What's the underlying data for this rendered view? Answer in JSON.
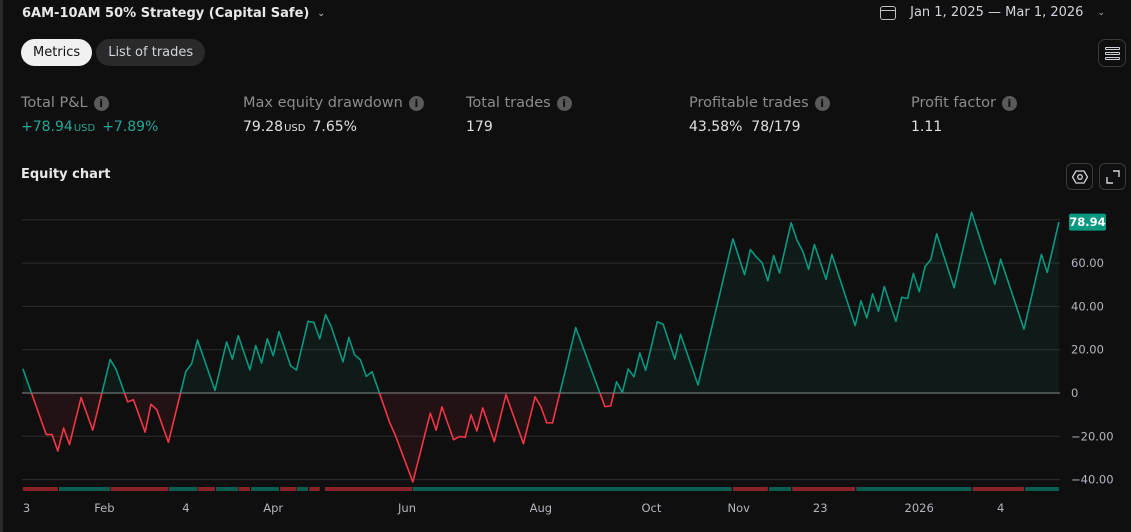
{
  "header": {
    "strategy_title": "6AM-10AM 50% Strategy (Capital Safe)",
    "date_range": "Jan 1, 2025 — Mar 1, 2026"
  },
  "tabs": [
    {
      "label": "Metrics",
      "active": true
    },
    {
      "label": "List of trades",
      "active": false
    }
  ],
  "metrics": {
    "total_pnl": {
      "label": "Total P&L",
      "value": "+78.94",
      "unit": "USD",
      "percent": "+7.89%"
    },
    "max_drawdown": {
      "label": "Max equity drawdown",
      "value": "79.28",
      "unit": "USD",
      "percent": "7.65%"
    },
    "total_trades": {
      "label": "Total trades",
      "value": "179"
    },
    "profitable_trades": {
      "label": "Profitable trades",
      "percent": "43.58%",
      "ratio": "78/179"
    },
    "profit_factor": {
      "label": "Profit factor",
      "value": "1.11"
    }
  },
  "equity_chart": {
    "title": "Equity chart"
  },
  "colors": {
    "profit": "#089981",
    "loss": "#f23645",
    "background": "#0f0f0f"
  },
  "chart_data": {
    "type": "area",
    "xlabel": "",
    "ylabel": "",
    "x_unit": "trade number",
    "ylim": [
      -45,
      85
    ],
    "grid": true,
    "last_value_label": "78.94",
    "y_ticks": [
      {
        "value": 80,
        "label": ""
      },
      {
        "value": 60,
        "label": "60.00"
      },
      {
        "value": 40,
        "label": "40.00"
      },
      {
        "value": 20,
        "label": "20.00"
      },
      {
        "value": 0,
        "label": "0"
      },
      {
        "value": -20,
        "label": "-20.00"
      },
      {
        "value": -40,
        "label": "-40.00"
      }
    ],
    "x_ticks": [
      {
        "x": 0,
        "label": "3"
      },
      {
        "x": 14,
        "label": "Feb"
      },
      {
        "x": 28,
        "label": "4"
      },
      {
        "x": 43,
        "label": "Apr"
      },
      {
        "x": 66,
        "label": "Jun"
      },
      {
        "x": 89,
        "label": "Aug"
      },
      {
        "x": 108,
        "label": "Oct"
      },
      {
        "x": 123,
        "label": "Nov"
      },
      {
        "x": 137,
        "label": "23"
      },
      {
        "x": 154,
        "label": "2026"
      },
      {
        "x": 168,
        "label": "4"
      }
    ],
    "points": [
      [
        0,
        11.2
      ],
      [
        4,
        -19.2
      ],
      [
        5,
        -19.2
      ],
      [
        6,
        -26.8
      ],
      [
        7,
        -16.2
      ],
      [
        8,
        -23.8
      ],
      [
        10,
        -2.1
      ],
      [
        12,
        -17.2
      ],
      [
        15,
        15.5
      ],
      [
        16,
        11.0
      ],
      [
        18,
        -4.1
      ],
      [
        19,
        -3.1
      ],
      [
        21,
        -18.1
      ],
      [
        22,
        -5.2
      ],
      [
        23,
        -7.7
      ],
      [
        25,
        -22.8
      ],
      [
        28,
        10.0
      ],
      [
        29,
        13.5
      ],
      [
        30,
        24.5
      ],
      [
        33,
        1.2
      ],
      [
        35,
        23.6
      ],
      [
        36,
        15.6
      ],
      [
        37,
        26.5
      ],
      [
        39,
        10.7
      ],
      [
        40,
        21.9
      ],
      [
        41,
        13.8
      ],
      [
        42,
        25.1
      ],
      [
        43,
        17.2
      ],
      [
        44,
        28.4
      ],
      [
        46,
        12.6
      ],
      [
        47,
        10.6
      ],
      [
        49,
        33.1
      ],
      [
        50,
        32.6
      ],
      [
        51,
        25.0
      ],
      [
        52,
        36.2
      ],
      [
        53,
        30.5
      ],
      [
        55,
        14.4
      ],
      [
        56,
        25.6
      ],
      [
        57,
        17.6
      ],
      [
        58,
        15.3
      ],
      [
        59,
        7.7
      ],
      [
        60,
        9.8
      ],
      [
        63,
        -13.5
      ],
      [
        64,
        -19.6
      ],
      [
        67,
        -41.1
      ],
      [
        70,
        -9.3
      ],
      [
        71,
        -17.2
      ],
      [
        72,
        -6.4
      ],
      [
        74,
        -21.6
      ],
      [
        75,
        -20.1
      ],
      [
        76,
        -20.5
      ],
      [
        77,
        -10.0
      ],
      [
        78,
        -17.6
      ],
      [
        79,
        -6.9
      ],
      [
        81,
        -22.5
      ],
      [
        83,
        -0.8
      ],
      [
        86,
        -23.4
      ],
      [
        88,
        -1.8
      ],
      [
        89,
        -6.3
      ],
      [
        90,
        -13.8
      ],
      [
        91,
        -13.8
      ],
      [
        95,
        30.2
      ],
      [
        100,
        -6.3
      ],
      [
        101,
        -6.0
      ],
      [
        102,
        5.2
      ],
      [
        103,
        0.2
      ],
      [
        104,
        11.1
      ],
      [
        105,
        7.5
      ],
      [
        106,
        18.5
      ],
      [
        107,
        10.5
      ],
      [
        109,
        32.9
      ],
      [
        110,
        31.8
      ],
      [
        112,
        15.7
      ],
      [
        113,
        27.1
      ],
      [
        116,
        3.7
      ],
      [
        122,
        71.2
      ],
      [
        124,
        54.6
      ],
      [
        125,
        66.3
      ],
      [
        126,
        62.9
      ],
      [
        127,
        60.2
      ],
      [
        128,
        51.8
      ],
      [
        129,
        63.5
      ],
      [
        130,
        55.4
      ],
      [
        132,
        78.6
      ],
      [
        133,
        70.6
      ],
      [
        134,
        65.5
      ],
      [
        135,
        57.1
      ],
      [
        136,
        68.6
      ],
      [
        138,
        52.5
      ],
      [
        139,
        64.0
      ],
      [
        143,
        31.1
      ],
      [
        144,
        42.6
      ],
      [
        145,
        34.6
      ],
      [
        146,
        45.8
      ],
      [
        147,
        37.8
      ],
      [
        148,
        49.2
      ],
      [
        150,
        33.1
      ],
      [
        151,
        44.2
      ],
      [
        152,
        43.7
      ],
      [
        153,
        55.2
      ],
      [
        154,
        46.8
      ],
      [
        155,
        58.3
      ],
      [
        156,
        61.7
      ],
      [
        157,
        73.5
      ],
      [
        160,
        48.6
      ],
      [
        163,
        83.5
      ],
      [
        167,
        50.2
      ],
      [
        168,
        61.8
      ],
      [
        172,
        29.5
      ],
      [
        175,
        64.0
      ],
      [
        176,
        55.7
      ],
      [
        178,
        78.94
      ]
    ],
    "period_strip": [
      [
        0,
        6,
        "loss"
      ],
      [
        6.2,
        15,
        "profit"
      ],
      [
        15.1,
        25,
        "loss"
      ],
      [
        25.1,
        30,
        "profit"
      ],
      [
        30.1,
        33,
        "loss"
      ],
      [
        33.2,
        37,
        "profit"
      ],
      [
        37.1,
        39,
        "loss"
      ],
      [
        39.2,
        44,
        "profit"
      ],
      [
        44.2,
        47,
        "loss"
      ],
      [
        47.1,
        49,
        "profit"
      ],
      [
        49.2,
        51,
        "loss"
      ],
      [
        51.9,
        66.9,
        "loss"
      ],
      [
        67,
        121.8,
        "profit"
      ],
      [
        122,
        128,
        "loss"
      ],
      [
        128.2,
        132,
        "profit"
      ],
      [
        132.2,
        143,
        "loss"
      ],
      [
        143.2,
        163,
        "profit"
      ],
      [
        163.2,
        172,
        "loss"
      ],
      [
        172.2,
        178,
        "profit"
      ]
    ]
  }
}
